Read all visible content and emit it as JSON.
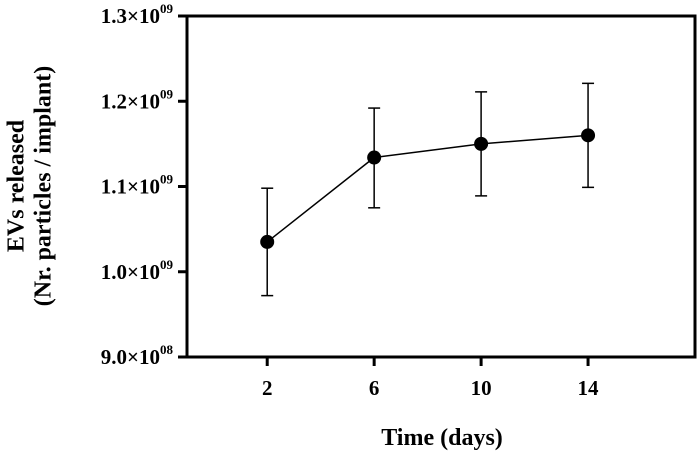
{
  "chart_data": {
    "type": "line",
    "title": "",
    "xlabel": "Time (days)",
    "ylabel": [
      "EVs released",
      "(Nr. particles / implant)"
    ],
    "x": [
      2,
      6,
      10,
      14
    ],
    "xticks": [
      "2",
      "6",
      "10",
      "14"
    ],
    "xlim": [
      -1,
      18
    ],
    "ylim": [
      900000000,
      1300000000
    ],
    "yticks": [
      {
        "value": 900000000,
        "mantissa": "9.0×10",
        "exponent": "08"
      },
      {
        "value": 1000000000,
        "mantissa": "1.0×10",
        "exponent": "09"
      },
      {
        "value": 1100000000,
        "mantissa": "1.1×10",
        "exponent": "09"
      },
      {
        "value": 1200000000,
        "mantissa": "1.2×10",
        "exponent": "09"
      },
      {
        "value": 1300000000,
        "mantissa": "1.3×10",
        "exponent": "09"
      }
    ],
    "series": [
      {
        "values": [
          1035000000,
          1134000000,
          1150000000,
          1160000000
        ],
        "error_upper": [
          1098000000,
          1192000000,
          1211000000,
          1221000000
        ],
        "error_lower": [
          972000000,
          1075000000,
          1089000000,
          1099000000
        ],
        "color": "#000000"
      }
    ],
    "grid": false,
    "legend": "none"
  }
}
